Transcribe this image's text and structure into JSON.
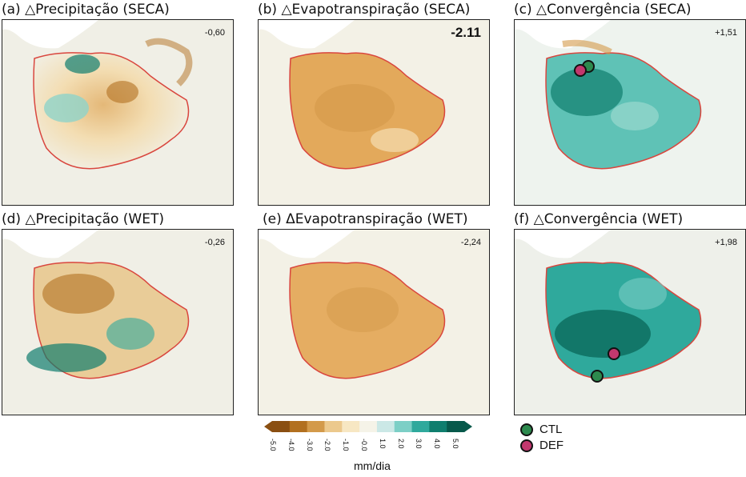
{
  "panels": [
    {
      "title": "(a) △Precipitação (SECA)",
      "value": "-0,60"
    },
    {
      "title": "(b) △Evapotranspiração (SECA)",
      "value": "-2.11"
    },
    {
      "title": "(c) △Convergência (SECA)",
      "value": "+1,51"
    },
    {
      "title": "(d) △Precipitação (WET)",
      "value": "-0,26"
    },
    {
      "title": "(e) ΔEvapotranspiração (WET)",
      "value": "-2,24"
    },
    {
      "title": "(f) △Convergência (WET)",
      "value": "+1,98"
    }
  ],
  "colorbar": {
    "ticks": [
      "-5.0",
      "-4.0",
      "-3.0",
      "-2.0",
      "-1.0",
      "-0.0",
      "1.0",
      "2.0",
      "3.0",
      "4.0",
      "5.0"
    ],
    "unit": "mm/dia",
    "colors": [
      "#8a4f12",
      "#b2701f",
      "#d39a4a",
      "#ecc98d",
      "#f7e7c3",
      "#f5f3e8",
      "#cbe8e6",
      "#7ccfc6",
      "#2fa99c",
      "#0f7e6e",
      "#07594b"
    ]
  },
  "legend": {
    "items": [
      {
        "label": "CTL",
        "color": "#2d8a4e"
      },
      {
        "label": "DEF",
        "color": "#c2386e"
      }
    ]
  }
}
